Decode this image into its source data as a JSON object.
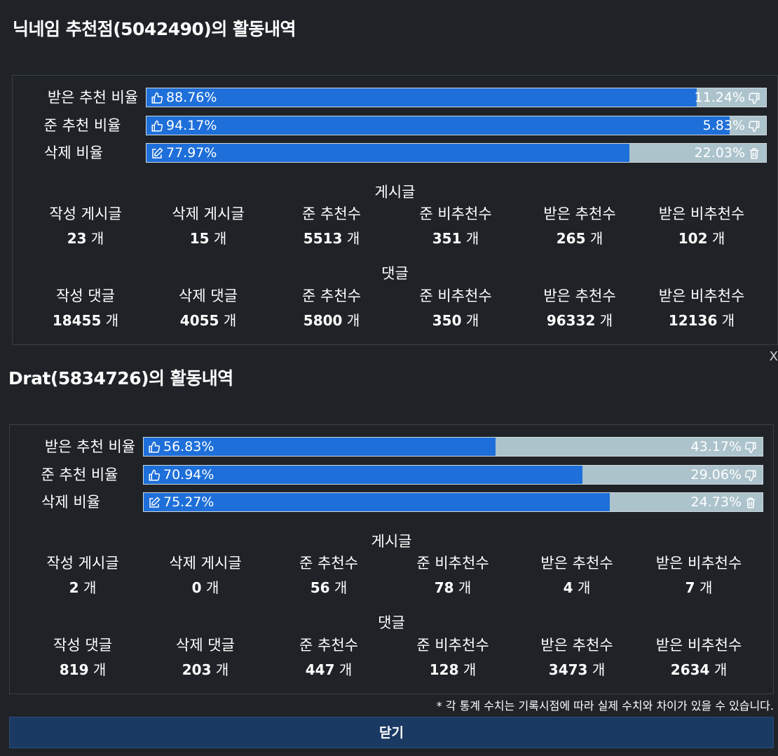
{
  "users": [
    {
      "title": "닉네임 추천점(5042490)의 활동내역",
      "bars": [
        {
          "label": "받은 추천 비율",
          "pos_value": 88.76,
          "pos_text": "88.76%",
          "neg_text": "11.24%",
          "pos_icon": "thumbs-up-icon",
          "neg_icon": "thumbs-down-icon"
        },
        {
          "label": "준 추천 비율",
          "pos_value": 94.17,
          "pos_text": "94.17%",
          "neg_text": "5.83%",
          "pos_icon": "thumbs-up-icon",
          "neg_icon": "thumbs-down-icon"
        },
        {
          "label": "삭제 비율",
          "pos_value": 77.97,
          "pos_text": "77.97%",
          "neg_text": "22.03%",
          "pos_icon": "edit-icon",
          "neg_icon": "trash-icon"
        }
      ],
      "groups": [
        {
          "title": "게시글",
          "stats": [
            {
              "label": "작성 게시글",
              "value": "23",
              "unit": "개"
            },
            {
              "label": "삭제 게시글",
              "value": "15",
              "unit": "개"
            },
            {
              "label": "준 추천수",
              "value": "5513",
              "unit": "개"
            },
            {
              "label": "준 비추천수",
              "value": "351",
              "unit": "개"
            },
            {
              "label": "받은 추천수",
              "value": "265",
              "unit": "개"
            },
            {
              "label": "받은 비추천수",
              "value": "102",
              "unit": "개"
            }
          ]
        },
        {
          "title": "댓글",
          "stats": [
            {
              "label": "작성 댓글",
              "value": "18455",
              "unit": "개"
            },
            {
              "label": "삭제 댓글",
              "value": "4055",
              "unit": "개"
            },
            {
              "label": "준 추천수",
              "value": "5800",
              "unit": "개"
            },
            {
              "label": "준 비추천수",
              "value": "350",
              "unit": "개"
            },
            {
              "label": "받은 추천수",
              "value": "96332",
              "unit": "개"
            },
            {
              "label": "받은 비추천수",
              "value": "12136",
              "unit": "개"
            }
          ]
        }
      ]
    },
    {
      "title": "Drat(5834726)의 활동내역",
      "bars": [
        {
          "label": "받은 추천 비율",
          "pos_value": 56.83,
          "pos_text": "56.83%",
          "neg_text": "43.17%",
          "pos_icon": "thumbs-up-icon",
          "neg_icon": "thumbs-down-icon"
        },
        {
          "label": "준 추천 비율",
          "pos_value": 70.94,
          "pos_text": "70.94%",
          "neg_text": "29.06%",
          "pos_icon": "thumbs-up-icon",
          "neg_icon": "thumbs-down-icon"
        },
        {
          "label": "삭제 비율",
          "pos_value": 75.27,
          "pos_text": "75.27%",
          "neg_text": "24.73%",
          "pos_icon": "edit-icon",
          "neg_icon": "trash-icon"
        }
      ],
      "groups": [
        {
          "title": "게시글",
          "stats": [
            {
              "label": "작성 게시글",
              "value": "2",
              "unit": "개"
            },
            {
              "label": "삭제 게시글",
              "value": "0",
              "unit": "개"
            },
            {
              "label": "준 추천수",
              "value": "56",
              "unit": "개"
            },
            {
              "label": "준 비추천수",
              "value": "78",
              "unit": "개"
            },
            {
              "label": "받은 추천수",
              "value": "4",
              "unit": "개"
            },
            {
              "label": "받은 비추천수",
              "value": "7",
              "unit": "개"
            }
          ]
        },
        {
          "title": "댓글",
          "stats": [
            {
              "label": "작성 댓글",
              "value": "819",
              "unit": "개"
            },
            {
              "label": "삭제 댓글",
              "value": "203",
              "unit": "개"
            },
            {
              "label": "준 추천수",
              "value": "447",
              "unit": "개"
            },
            {
              "label": "준 비추천수",
              "value": "128",
              "unit": "개"
            },
            {
              "label": "받은 추천수",
              "value": "3473",
              "unit": "개"
            },
            {
              "label": "받은 비추천수",
              "value": "2634",
              "unit": "개"
            }
          ]
        }
      ]
    }
  ],
  "notice": "* 각 통계 수치는 기록시점에 따라 실제 수치와 차이가 있을 수 있습니다.",
  "close_label": "닫기",
  "side_close_glyph": "X",
  "colors": {
    "background": "#1f2327",
    "bar_fill": "#1e6fd9",
    "bar_empty": "#acc3cc",
    "close_button": "#1b3a63"
  }
}
